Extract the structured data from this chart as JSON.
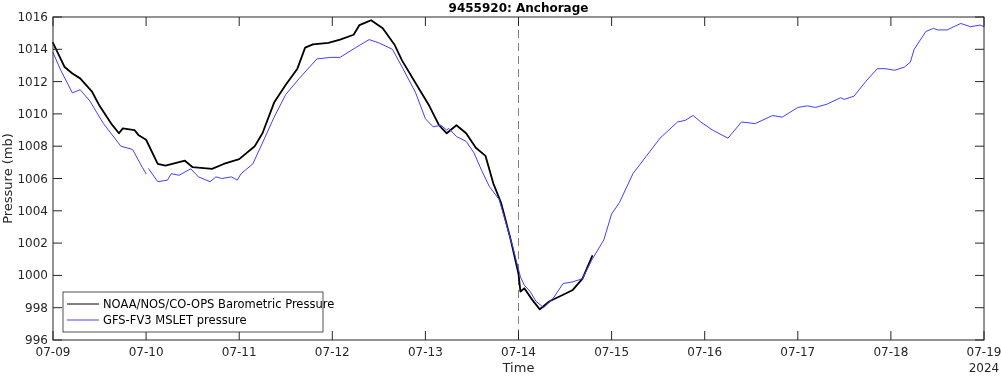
{
  "chart_data": {
    "type": "line",
    "title": "9455920: Anchorage",
    "xlabel": "Time",
    "ylabel": "Pressure (mb)",
    "annotations": [
      "2024"
    ],
    "xlim": [
      "2024-07-09",
      "2024-07-19"
    ],
    "xticks": [
      {
        "value": "2024-07-09",
        "label": "07-09"
      },
      {
        "value": "2024-07-10",
        "label": "07-10"
      },
      {
        "value": "2024-07-11",
        "label": "07-11"
      },
      {
        "value": "2024-07-12",
        "label": "07-12"
      },
      {
        "value": "2024-07-13",
        "label": "07-13"
      },
      {
        "value": "2024-07-14",
        "label": "07-14"
      },
      {
        "value": "2024-07-15",
        "label": "07-15"
      },
      {
        "value": "2024-07-16",
        "label": "07-16"
      },
      {
        "value": "2024-07-17",
        "label": "07-17"
      },
      {
        "value": "2024-07-18",
        "label": "07-18"
      },
      {
        "value": "2024-07-19",
        "label": "07-19"
      }
    ],
    "ylim": [
      996,
      1016
    ],
    "yticks": [
      996,
      998,
      1000,
      1002,
      1004,
      1006,
      1008,
      1010,
      1012,
      1014,
      1016
    ],
    "grid": false,
    "legend": "bottom left",
    "line_style": "solid",
    "marker": "none",
    "ref_lines": [
      {
        "axis": "x",
        "value": "2024-07-14",
        "label": null,
        "color": "#808080",
        "line_style": "dashed"
      }
    ],
    "series": [
      {
        "name": "NOAA/NOS/CO-OPS Barometric Pressure",
        "color": "#000000",
        "x": [
          "2024-07-09T00:00",
          "2024-07-09T03:00",
          "2024-07-09T05:00",
          "2024-07-09T07:00",
          "2024-07-09T10:00",
          "2024-07-09T12:00",
          "2024-07-09T15:00",
          "2024-07-09T17:00",
          "2024-07-09T18:00",
          "2024-07-09T21:00",
          "2024-07-09T22:00",
          "2024-07-10T00:00",
          "2024-07-10T03:00",
          "2024-07-10T05:00",
          "2024-07-10T10:00",
          "2024-07-10T12:00",
          "2024-07-10T17:00",
          "2024-07-10T20:00",
          "2024-07-11T00:00",
          "2024-07-11T04:00",
          "2024-07-11T06:00",
          "2024-07-11T09:00",
          "2024-07-11T12:00",
          "2024-07-11T15:00",
          "2024-07-11T17:00",
          "2024-07-11T19:00",
          "2024-07-11T23:00",
          "2024-07-12T02:00",
          "2024-07-12T05:30",
          "2024-07-12T07:00",
          "2024-07-12T09:00",
          "2024-07-12T10:00",
          "2024-07-12T13:00",
          "2024-07-12T16:00",
          "2024-07-12T18:00",
          "2024-07-12T22:30",
          "2024-07-13T01:00",
          "2024-07-13T03:30",
          "2024-07-13T05:30",
          "2024-07-13T08:00",
          "2024-07-13T10:30",
          "2024-07-13T13:00",
          "2024-07-13T15:30",
          "2024-07-13T17:30",
          "2024-07-13T19:30",
          "2024-07-13T22:00",
          "2024-07-14T00:00",
          "2024-07-14T00:30",
          "2024-07-14T01:30",
          "2024-07-14T03:30",
          "2024-07-14T05:30",
          "2024-07-14T08:00",
          "2024-07-14T11:30",
          "2024-07-14T14:00",
          "2024-07-14T16:30",
          "2024-07-14T19:00"
        ],
        "values": [
          1014.4,
          1012.9,
          1012.5,
          1012.2,
          1011.4,
          1010.5,
          1009.4,
          1008.8,
          1009.1,
          1009.0,
          1008.7,
          1008.4,
          1006.9,
          1006.8,
          1007.1,
          1006.7,
          1006.6,
          1006.9,
          1007.2,
          1008.0,
          1008.8,
          1010.7,
          1011.8,
          1012.8,
          1014.1,
          1014.3,
          1014.4,
          1014.6,
          1014.9,
          1015.5,
          1015.7,
          1015.8,
          1015.3,
          1014.3,
          1013.3,
          1011.5,
          1010.5,
          1009.3,
          1008.8,
          1009.3,
          1008.8,
          1007.9,
          1007.4,
          1005.7,
          1004.5,
          1002.2,
          1000.1,
          999.0,
          999.2,
          998.5,
          997.9,
          998.4,
          998.8,
          999.1,
          999.8,
          1001.2
        ]
      },
      {
        "name": "GFS-FV3 MSLET pressure",
        "color": "#4040ff",
        "x": [
          "2024-07-09T00:00",
          "2024-07-09T02:00",
          "2024-07-09T05:00",
          "2024-07-09T07:00",
          "2024-07-09T09:30",
          "2024-07-09T13:00",
          "2024-07-09T17:30",
          "2024-07-09T20:30",
          "2024-07-09T23:00",
          "2024-07-10T00:00",
          "2024-07-10T00:20",
          "2024-07-10T00:40",
          "2024-07-10T03:00",
          "2024-07-10T05:30",
          "2024-07-10T06:30",
          "2024-07-10T08:30",
          "2024-07-10T11:30",
          "2024-07-10T13:30",
          "2024-07-10T16:30",
          "2024-07-10T18:00",
          "2024-07-10T19:30",
          "2024-07-10T22:00",
          "2024-07-10T23:30",
          "2024-07-11T00:30",
          "2024-07-11T03:30",
          "2024-07-11T06:00",
          "2024-07-11T09:00",
          "2024-07-11T12:00",
          "2024-07-11T15:30",
          "2024-07-11T20:00",
          "2024-07-11T23:30",
          "2024-07-12T02:00",
          "2024-07-12T06:00",
          "2024-07-12T09:30",
          "2024-07-12T12:00",
          "2024-07-12T15:30",
          "2024-07-12T18:00",
          "2024-07-12T21:30",
          "2024-07-13T00:00",
          "2024-07-13T02:00",
          "2024-07-13T04:00",
          "2024-07-13T05:30",
          "2024-07-13T06:00",
          "2024-07-13T08:00",
          "2024-07-13T10:30",
          "2024-07-13T12:30",
          "2024-07-13T14:30",
          "2024-07-13T16:30",
          "2024-07-13T19:00",
          "2024-07-13T22:30",
          "2024-07-14T00:30",
          "2024-07-14T01:30",
          "2024-07-14T03:00",
          "2024-07-14T04:30",
          "2024-07-14T06:30",
          "2024-07-14T09:00",
          "2024-07-14T11:30",
          "2024-07-14T14:00",
          "2024-07-14T16:30",
          "2024-07-14T19:00",
          "2024-07-14T22:00",
          "2024-07-15T00:00",
          "2024-07-15T02:00",
          "2024-07-15T05:30",
          "2024-07-15T09:00",
          "2024-07-15T12:30",
          "2024-07-15T17:00",
          "2024-07-15T19:00",
          "2024-07-15T21:00",
          "2024-07-15T23:00",
          "2024-07-16T02:00",
          "2024-07-16T06:00",
          "2024-07-16T09:30",
          "2024-07-16T13:00",
          "2024-07-16T17:30",
          "2024-07-16T20:00",
          "2024-07-17T00:00",
          "2024-07-17T02:30",
          "2024-07-17T04:30",
          "2024-07-17T07:30",
          "2024-07-17T11:00",
          "2024-07-17T12:00",
          "2024-07-17T14:30",
          "2024-07-17T17:30",
          "2024-07-17T20:30",
          "2024-07-17T22:30",
          "2024-07-18T01:00",
          "2024-07-18T03:30",
          "2024-07-18T05:00",
          "2024-07-18T06:00",
          "2024-07-18T09:00",
          "2024-07-18T11:00",
          "2024-07-18T12:00",
          "2024-07-18T14:30",
          "2024-07-18T18:00",
          "2024-07-18T20:30",
          "2024-07-18T23:00",
          "2024-07-19T00:00"
        ],
        "values": [
          1013.8,
          1012.7,
          1011.3,
          1011.5,
          1010.8,
          1009.4,
          1008.0,
          1007.8,
          1006.7,
          1006.3,
          null,
          1006.6,
          1005.8,
          1005.9,
          1006.3,
          1006.2,
          1006.6,
          1006.1,
          1005.8,
          1006.1,
          1006.0,
          1006.1,
          1005.9,
          1006.3,
          1006.9,
          1008.2,
          1009.8,
          1011.2,
          1012.2,
          1013.4,
          1013.5,
          1013.5,
          1014.1,
          1014.6,
          1014.4,
          1014.0,
          1012.9,
          1011.3,
          1009.7,
          1009.2,
          1009.3,
          1009.0,
          1009.1,
          1008.6,
          1008.3,
          1007.6,
          1006.5,
          1005.5,
          1004.7,
          1001.8,
          999.9,
          999.4,
          999.0,
          998.4,
          998.0,
          998.6,
          999.5,
          999.6,
          999.8,
          1001.0,
          1002.2,
          1003.8,
          1004.5,
          1006.3,
          1007.4,
          1008.5,
          1009.5,
          1009.6,
          1009.9,
          1009.5,
          1009.0,
          1008.5,
          1009.5,
          1009.4,
          1009.9,
          1009.8,
          1010.4,
          1010.5,
          1010.4,
          1010.6,
          1011.0,
          1010.9,
          1011.1,
          1012.0,
          1012.8,
          1012.8,
          1012.7,
          1012.9,
          1013.2,
          1014.0,
          1015.1,
          1015.3,
          1015.2,
          1015.2,
          1015.6,
          1015.4,
          1015.5,
          1015.4
        ]
      }
    ]
  }
}
